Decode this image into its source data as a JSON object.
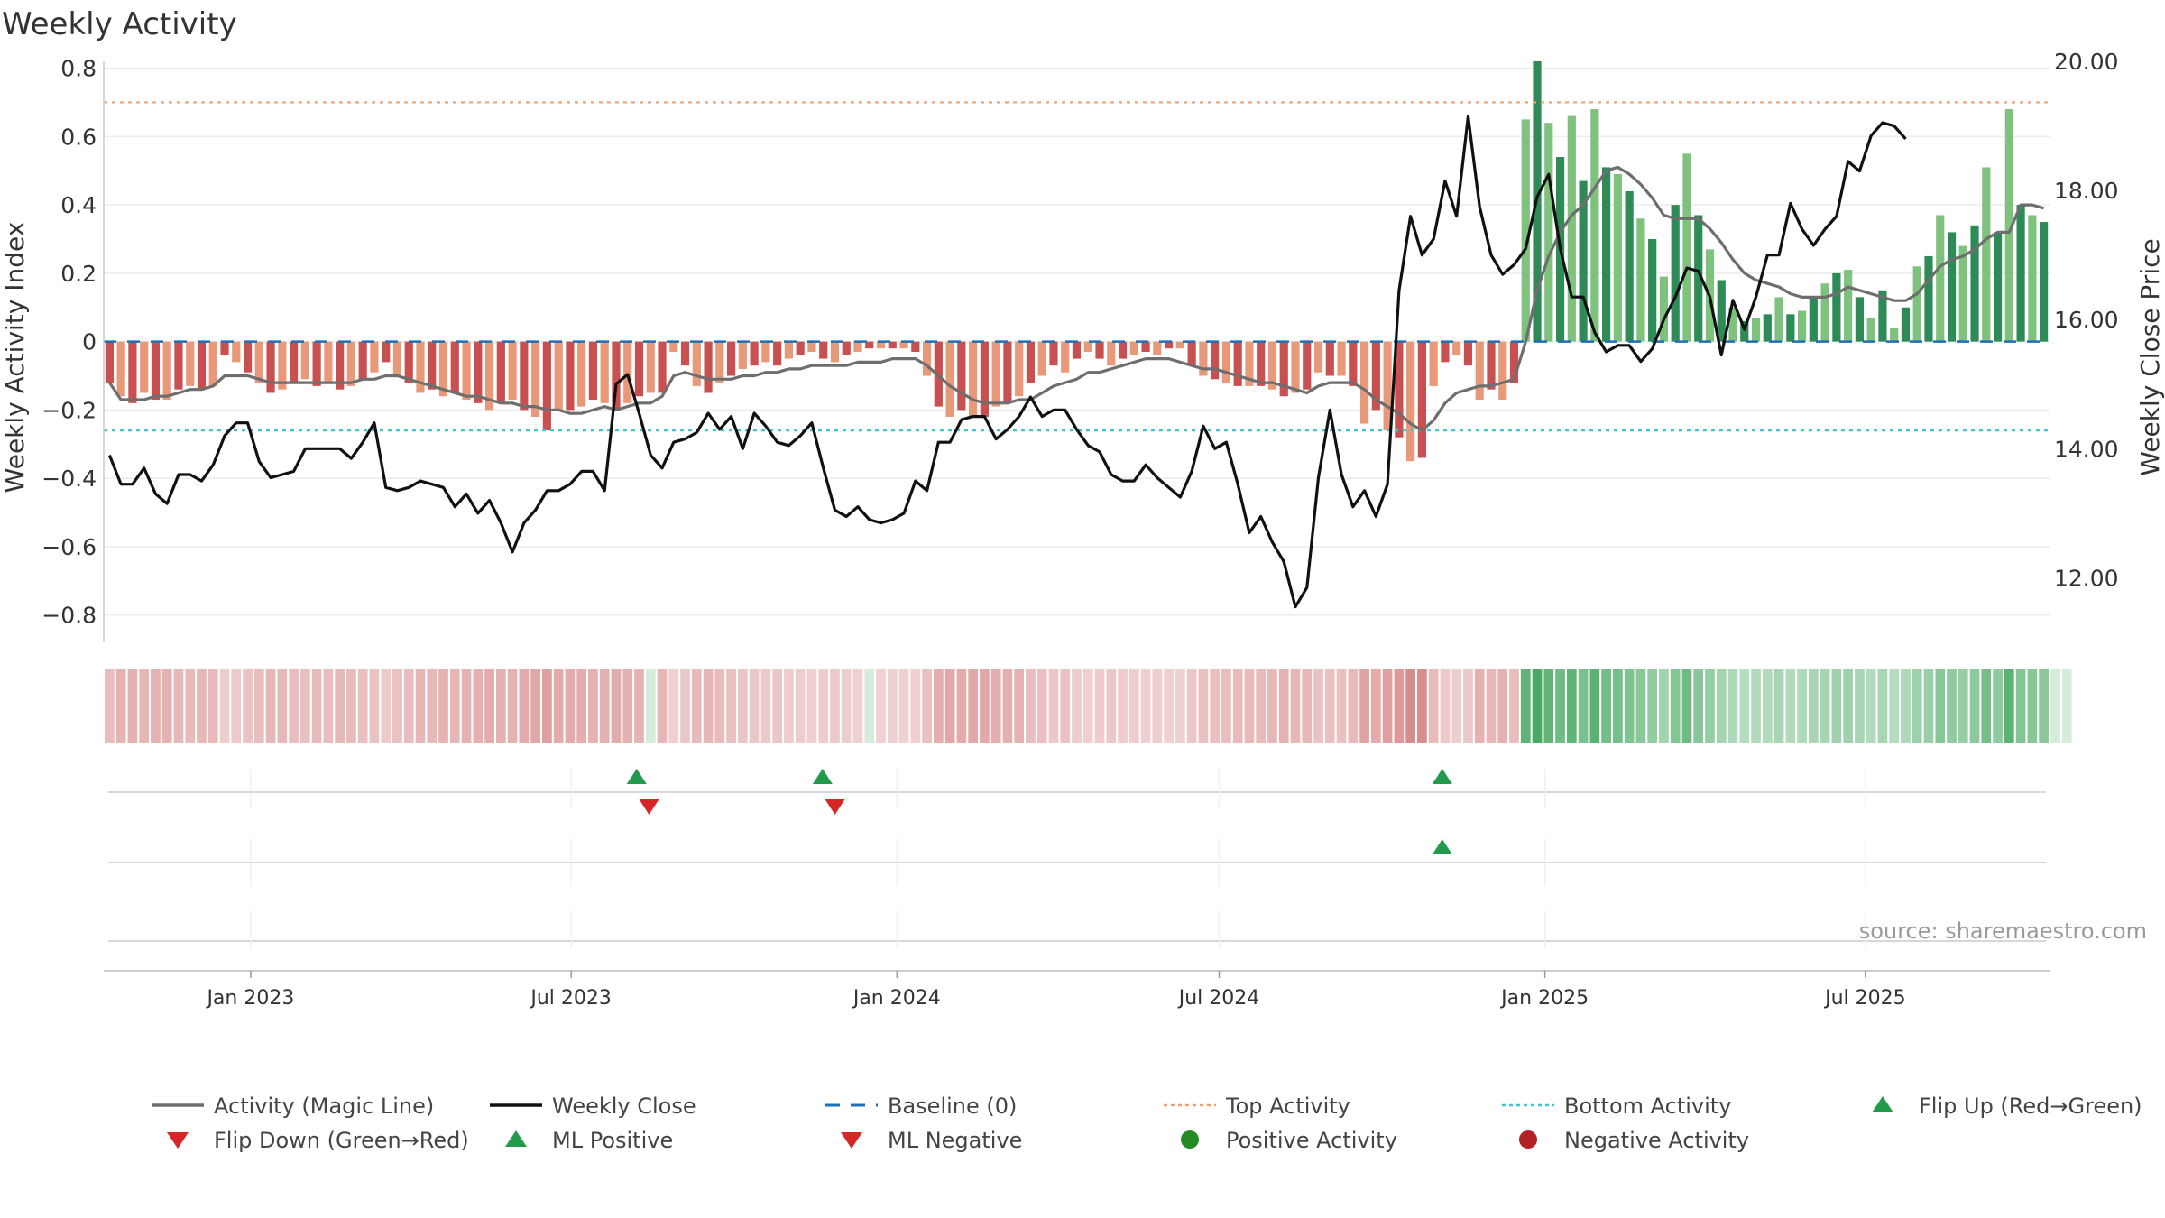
{
  "chart_data": {
    "type": "bar",
    "title": "Weekly Activity",
    "ylabel_left": "Weekly Activity Index",
    "ylabel_right": "Weekly Close Price",
    "ylim_left": [
      -0.88,
      0.82
    ],
    "ylim_right": [
      11.0,
      20.0
    ],
    "yticks_left": [
      0.8,
      0.6,
      0.4,
      0.2,
      0,
      -0.2,
      -0.4,
      -0.6,
      -0.8
    ],
    "yticks_left_labels": [
      "0.8",
      "0.6",
      "0.4",
      "0.2",
      "0",
      "−0.2",
      "−0.4",
      "−0.6",
      "−0.8"
    ],
    "yticks_right": [
      20,
      18,
      16,
      14,
      12
    ],
    "yticks_right_labels": [
      "20.00",
      "18.00",
      "16.00",
      "14.00",
      "12.00"
    ],
    "x_start": "2022-10-10",
    "x_end": "2025-10-13",
    "xticks": [
      {
        "date": "2023-01-01",
        "label": "Jan 2023"
      },
      {
        "date": "2023-07-01",
        "label": "Jul 2023"
      },
      {
        "date": "2024-01-01",
        "label": "Jan 2024"
      },
      {
        "date": "2024-07-01",
        "label": "Jul 2024"
      },
      {
        "date": "2025-01-01",
        "label": "Jan 2025"
      },
      {
        "date": "2025-07-01",
        "label": "Jul 2025"
      }
    ],
    "reference_lines": {
      "baseline": 0,
      "top_activity": 0.7,
      "bottom_activity": -0.26
    },
    "activity_index": [
      -0.12,
      -0.16,
      -0.18,
      -0.15,
      -0.17,
      -0.17,
      -0.14,
      -0.13,
      -0.14,
      -0.13,
      -0.04,
      -0.06,
      -0.09,
      -0.12,
      -0.15,
      -0.14,
      -0.12,
      -0.11,
      -0.13,
      -0.12,
      -0.14,
      -0.13,
      -0.11,
      -0.09,
      -0.06,
      -0.1,
      -0.12,
      -0.15,
      -0.14,
      -0.16,
      -0.15,
      -0.17,
      -0.18,
      -0.2,
      -0.18,
      -0.17,
      -0.2,
      -0.22,
      -0.26,
      -0.2,
      -0.2,
      -0.19,
      -0.17,
      -0.18,
      -0.2,
      -0.18,
      -0.16,
      -0.15,
      -0.15,
      -0.03,
      -0.07,
      -0.13,
      -0.15,
      -0.12,
      -0.1,
      -0.08,
      -0.07,
      -0.06,
      -0.07,
      -0.05,
      -0.04,
      -0.03,
      -0.05,
      -0.06,
      -0.04,
      -0.03,
      -0.02,
      -0.02,
      -0.02,
      -0.02,
      -0.03,
      -0.1,
      -0.19,
      -0.22,
      -0.2,
      -0.22,
      -0.22,
      -0.19,
      -0.18,
      -0.16,
      -0.12,
      -0.1,
      -0.07,
      -0.09,
      -0.05,
      -0.03,
      -0.05,
      -0.07,
      -0.05,
      -0.04,
      -0.03,
      -0.04,
      -0.02,
      -0.02,
      -0.07,
      -0.1,
      -0.11,
      -0.12,
      -0.13,
      -0.13,
      -0.13,
      -0.14,
      -0.16,
      -0.15,
      -0.14,
      -0.09,
      -0.1,
      -0.1,
      -0.13,
      -0.24,
      -0.2,
      -0.26,
      -0.28,
      -0.35,
      -0.34,
      -0.13,
      -0.06,
      -0.04,
      -0.07,
      -0.17,
      -0.14,
      -0.17,
      -0.12,
      0.65,
      0.82,
      0.64,
      0.54,
      0.66,
      0.47,
      0.68,
      0.51,
      0.49,
      0.44,
      0.36,
      0.3,
      0.19,
      0.4,
      0.55,
      0.37,
      0.27,
      0.18,
      0.1,
      0.06,
      0.07,
      0.08,
      0.13,
      0.08,
      0.09,
      0.13,
      0.17,
      0.2,
      0.21,
      0.13,
      0.07,
      0.15,
      0.04,
      0.1,
      0.22,
      0.25,
      0.37,
      0.32,
      0.28,
      0.34,
      0.51,
      0.32,
      0.68,
      0.4,
      0.37,
      0.35
    ],
    "magic_line": [
      -0.12,
      -0.17,
      -0.17,
      -0.17,
      -0.16,
      -0.16,
      -0.15,
      -0.14,
      -0.14,
      -0.13,
      -0.1,
      -0.1,
      -0.1,
      -0.11,
      -0.12,
      -0.12,
      -0.12,
      -0.12,
      -0.12,
      -0.12,
      -0.12,
      -0.12,
      -0.11,
      -0.11,
      -0.1,
      -0.1,
      -0.11,
      -0.12,
      -0.13,
      -0.14,
      -0.15,
      -0.16,
      -0.16,
      -0.17,
      -0.18,
      -0.18,
      -0.19,
      -0.19,
      -0.2,
      -0.2,
      -0.21,
      -0.21,
      -0.2,
      -0.19,
      -0.2,
      -0.19,
      -0.18,
      -0.18,
      -0.16,
      -0.1,
      -0.09,
      -0.1,
      -0.11,
      -0.11,
      -0.11,
      -0.1,
      -0.1,
      -0.09,
      -0.09,
      -0.08,
      -0.08,
      -0.07,
      -0.07,
      -0.07,
      -0.07,
      -0.06,
      -0.06,
      -0.06,
      -0.05,
      -0.05,
      -0.05,
      -0.07,
      -0.1,
      -0.13,
      -0.15,
      -0.17,
      -0.18,
      -0.18,
      -0.18,
      -0.17,
      -0.17,
      -0.15,
      -0.13,
      -0.12,
      -0.11,
      -0.09,
      -0.09,
      -0.08,
      -0.07,
      -0.06,
      -0.05,
      -0.05,
      -0.05,
      -0.06,
      -0.07,
      -0.08,
      -0.08,
      -0.09,
      -0.1,
      -0.11,
      -0.12,
      -0.12,
      -0.13,
      -0.14,
      -0.15,
      -0.13,
      -0.12,
      -0.12,
      -0.12,
      -0.14,
      -0.17,
      -0.19,
      -0.21,
      -0.24,
      -0.26,
      -0.23,
      -0.18,
      -0.15,
      -0.14,
      -0.13,
      -0.13,
      -0.12,
      -0.11,
      0.0,
      0.15,
      0.25,
      0.32,
      0.37,
      0.4,
      0.45,
      0.5,
      0.51,
      0.49,
      0.46,
      0.42,
      0.37,
      0.36,
      0.36,
      0.36,
      0.33,
      0.29,
      0.24,
      0.2,
      0.18,
      0.17,
      0.16,
      0.14,
      0.13,
      0.13,
      0.13,
      0.14,
      0.16,
      0.15,
      0.14,
      0.13,
      0.12,
      0.12,
      0.14,
      0.18,
      0.22,
      0.24,
      0.25,
      0.27,
      0.3,
      0.32,
      0.32,
      0.4,
      0.4,
      0.39
    ],
    "weekly_close": [
      13.9,
      13.45,
      13.45,
      13.7,
      13.3,
      13.15,
      13.6,
      13.6,
      13.5,
      13.75,
      14.2,
      14.4,
      14.4,
      13.8,
      13.55,
      13.6,
      13.65,
      14.0,
      14.0,
      14.0,
      14.0,
      13.85,
      14.1,
      14.4,
      13.4,
      13.35,
      13.4,
      13.5,
      13.45,
      13.4,
      13.1,
      13.3,
      13.0,
      13.2,
      12.85,
      12.4,
      12.85,
      13.05,
      13.35,
      13.35,
      13.45,
      13.65,
      13.65,
      13.35,
      15.0,
      15.15,
      14.55,
      13.9,
      13.7,
      14.1,
      14.15,
      14.25,
      14.55,
      14.3,
      14.5,
      14.0,
      14.55,
      14.35,
      14.1,
      14.05,
      14.2,
      14.4,
      13.7,
      13.05,
      12.95,
      13.1,
      12.9,
      12.85,
      12.9,
      13.0,
      13.5,
      13.35,
      14.1,
      14.1,
      14.45,
      14.5,
      14.5,
      14.15,
      14.3,
      14.5,
      14.8,
      14.5,
      14.6,
      14.6,
      14.3,
      14.05,
      13.95,
      13.6,
      13.5,
      13.5,
      13.75,
      13.55,
      13.4,
      13.25,
      13.65,
      14.35,
      14.0,
      14.1,
      13.45,
      12.7,
      12.95,
      12.55,
      12.25,
      11.55,
      11.85,
      13.55,
      14.6,
      13.6,
      13.1,
      13.35,
      12.95,
      13.45,
      16.45,
      17.6,
      17.0,
      17.25,
      18.15,
      17.6,
      19.15,
      17.75,
      17.0,
      16.7,
      16.85,
      17.1,
      17.9,
      18.25,
      17.1,
      16.35,
      16.35,
      15.8,
      15.5,
      15.6,
      15.6,
      15.35,
      15.55,
      16.0,
      16.35,
      16.8,
      16.75,
      16.35,
      15.45,
      16.3,
      15.85,
      16.35,
      17.0,
      17.0,
      17.8,
      17.4,
      17.15,
      17.4,
      17.6,
      18.45,
      18.3,
      18.85,
      19.05,
      19.0,
      18.8
    ],
    "color_strip_sign": [
      -1,
      -1,
      -1,
      -1,
      -1,
      -1,
      -1,
      -1,
      -1,
      -1,
      -1,
      -1,
      -1,
      -1,
      -1,
      -1,
      -1,
      -1,
      -1,
      -1,
      -1,
      -1,
      -1,
      -1,
      -1,
      -1,
      -1,
      -1,
      -1,
      -1,
      -1,
      -1,
      -1,
      -1,
      -1,
      -1,
      -1,
      -1,
      -1,
      -1,
      -1,
      -1,
      -1,
      -1,
      -1,
      -1,
      -1,
      1,
      -1,
      -1,
      -1,
      -1,
      -1,
      -1,
      -1,
      -1,
      -1,
      -1,
      -1,
      -1,
      -1,
      -1,
      -1,
      -1,
      -1,
      -1,
      1,
      -1,
      -1,
      -1,
      -1,
      -1,
      -1,
      -1,
      -1,
      -1,
      -1,
      -1,
      -1,
      -1,
      -1,
      -1,
      -1,
      -1,
      -1,
      -1,
      -1,
      -1,
      -1,
      -1,
      -1,
      -1,
      -1,
      -1,
      -1,
      -1,
      -1,
      -1,
      -1,
      -1,
      -1,
      -1,
      -1,
      -1,
      -1,
      -1,
      -1,
      -1,
      -1,
      -1,
      -1,
      -1,
      -1,
      -1,
      -1,
      -1,
      -1,
      -1,
      -1,
      -1,
      -1,
      -1,
      -1,
      1,
      1,
      1,
      1,
      1,
      1,
      1,
      1,
      1,
      1,
      1,
      1,
      1,
      1,
      1,
      1,
      1,
      1,
      1,
      1,
      1,
      1,
      1,
      1,
      1,
      1,
      1,
      1,
      1,
      1,
      1,
      1,
      1,
      1,
      1,
      1,
      1,
      1,
      1,
      1,
      1,
      1,
      1,
      1,
      1,
      1,
      1,
      1
    ],
    "flip_up_dates": [
      "2023-08-07",
      "2023-11-20",
      "2024-11-04"
    ],
    "flip_down_dates": [
      "2023-08-14",
      "2023-11-27"
    ],
    "ml_positive_dates": [
      "2024-11-04"
    ],
    "ml_negative_dates": [],
    "positive_activity_dates": [],
    "negative_activity_dates": [],
    "legend": [
      {
        "label": "Activity (Magic Line)",
        "symbol": "line",
        "color": "#6e6e6e"
      },
      {
        "label": "Weekly Close",
        "symbol": "line",
        "color": "#111111"
      },
      {
        "label": "Baseline (0)",
        "symbol": "dash",
        "color": "#1f6fb4"
      },
      {
        "label": "Top Activity",
        "symbol": "dot",
        "color": "#f0a070"
      },
      {
        "label": "Bottom Activity",
        "symbol": "dot",
        "color": "#3cc6d6"
      },
      {
        "label": "Flip Up (Red→Green)",
        "symbol": "tri-up",
        "color": "#239a4b"
      },
      {
        "label": "Flip Down (Green→Red)",
        "symbol": "tri-down",
        "color": "#d62728"
      },
      {
        "label": "ML Positive",
        "symbol": "tri-up",
        "color": "#239a4b"
      },
      {
        "label": "ML Negative",
        "symbol": "tri-down",
        "color": "#d62728"
      },
      {
        "label": "Positive Activity",
        "symbol": "circle",
        "color": "#228b22"
      },
      {
        "label": "Negative Activity",
        "symbol": "circle",
        "color": "#b22222"
      }
    ],
    "legend_placement": "bottom",
    "grid": true,
    "source_note": "source: sharemaestro.com",
    "colors": {
      "pos_dark": "#2e8b57",
      "pos_light": "#7ec27e",
      "neg_dark": "#c85050",
      "neg_light": "#e8997a",
      "strip_pos": "#3fa55a",
      "strip_neg": "#c85a5a",
      "magic_line": "#6e6e6e",
      "close_line": "#111111",
      "baseline": "#1f6fb4",
      "top_line": "#f0a070",
      "bottom_line": "#3cc6d6"
    }
  }
}
